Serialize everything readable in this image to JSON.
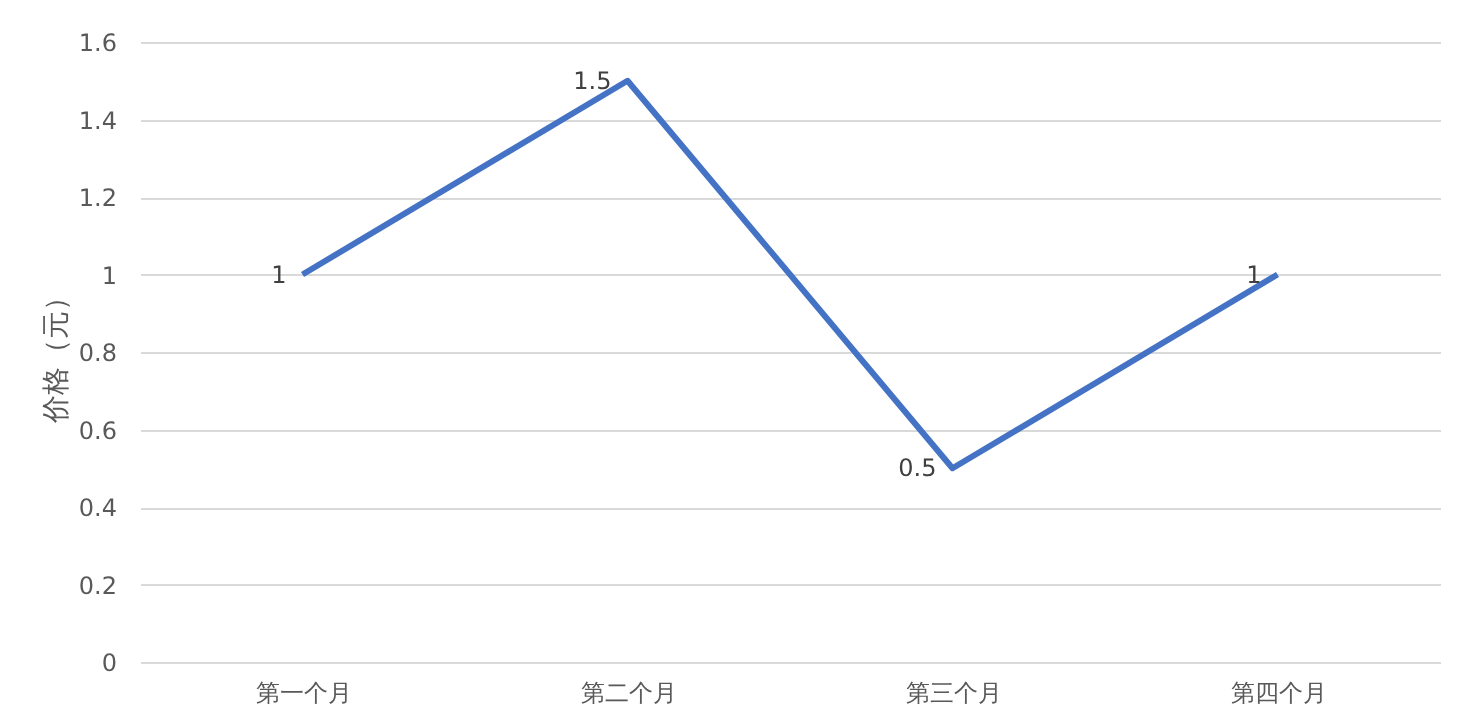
{
  "chart_data": {
    "type": "line",
    "ylabel": "价格（元）",
    "categories": [
      "第一个月",
      "第二个月",
      "第三个月",
      "第四个月"
    ],
    "series": [
      {
        "color": "#4472c4",
        "values": [
          1,
          1.5,
          0.5,
          1
        ]
      }
    ],
    "ylim": [
      0,
      1.6
    ],
    "yticks": [
      0,
      0.2,
      0.4,
      0.6,
      0.8,
      1,
      1.2,
      1.4,
      1.6
    ],
    "grid": "y",
    "legend": false,
    "marker": "none",
    "line_style": "solid",
    "data_labels": true
  }
}
